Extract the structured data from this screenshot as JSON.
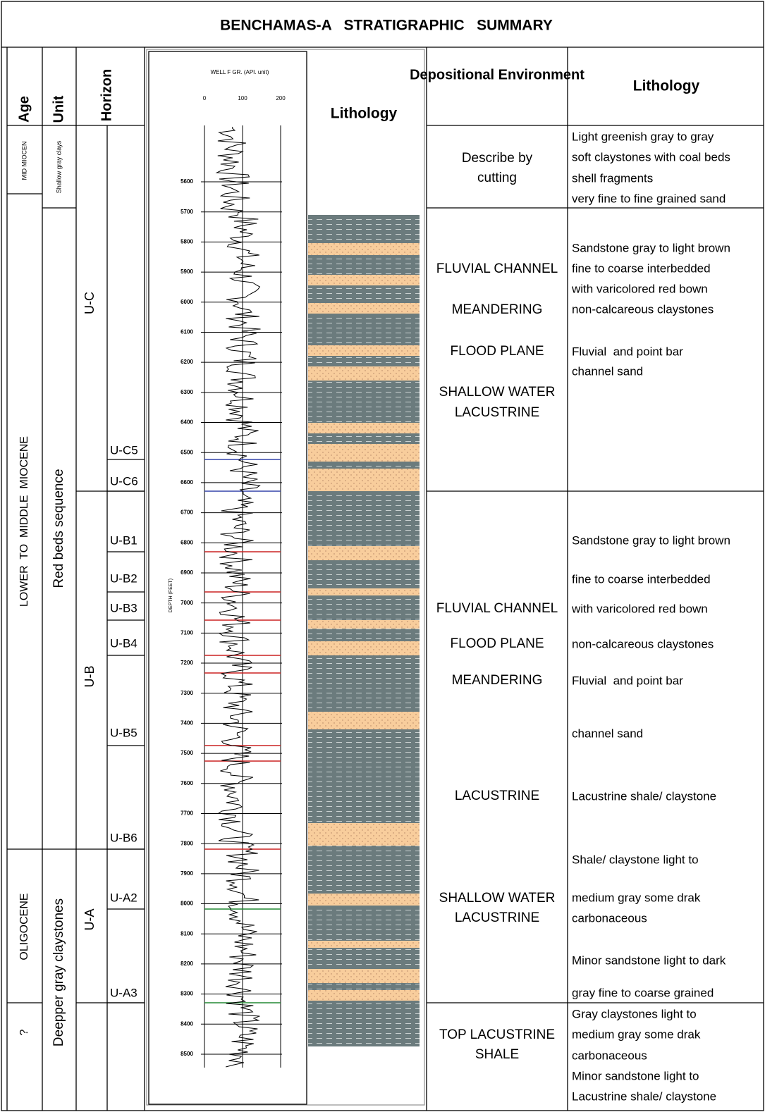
{
  "title": "BENCHAMAS-A   STRATIGRAPHIC   SUMMARY",
  "headers": {
    "age": "Age",
    "unit": "Unit",
    "horizon": "Horizon",
    "log_title": "WELL F GR. (API. unit)",
    "log_ticks": [
      0,
      100,
      200
    ],
    "lithology_column": "Lithology",
    "environment": "Depositional Environment",
    "lithology": "Lithology"
  },
  "depth_label": "DEPTH (FEET)",
  "depth_ticks": [
    5600,
    5700,
    5800,
    5900,
    6000,
    6100,
    6200,
    6300,
    6400,
    6500,
    6600,
    6700,
    6800,
    6900,
    7000,
    7100,
    7200,
    7300,
    7400,
    7500,
    7600,
    7700,
    7800,
    7900,
    8000,
    8100,
    8200,
    8300,
    8400,
    8500
  ],
  "ages": [
    "MID MIOCEN",
    "LOWER  TO  MIDDLE  MIOCENE",
    "OLIGOCENE",
    "?"
  ],
  "units": [
    "Shallow gray clays",
    "Red beds sequence",
    "Deepper gray claystones"
  ],
  "horizons": [
    "U-C",
    "U-B",
    "U-A"
  ],
  "sub_horizons": [
    "U-C5",
    "U-C6",
    "U-B1",
    "U-B2",
    "U-B3",
    "U-B4",
    "U-B5",
    "U-B6",
    "U-A2",
    "U-A3"
  ],
  "environment_lines": [
    "Describe by",
    "cutting",
    "FLUVIAL CHANNEL",
    "MEANDERING",
    "FLOOD PLANE",
    "SHALLOW WATER",
    "LACUSTRINE",
    "FLUVIAL CHANNEL",
    "FLOOD PLANE",
    "MEANDERING",
    "LACUSTRINE",
    "SHALLOW WATER",
    "LACUSTRINE",
    "TOP LACUSTRINE",
    "SHALE"
  ],
  "lithology_lines": [
    "Light greenish gray to gray",
    "soft claystones with coal beds",
    "shell fragments",
    "very fine to fine grained sand",
    "Sandstone gray to light brown",
    "fine to coarse interbedded",
    "with varicolored red bown",
    "non-calcareous claystones",
    "Fluvial  and point bar",
    "channel sand",
    "Sandstone gray to light brown",
    "fine to coarse interbedded",
    "with varicolored red bown",
    "non-calcareous claystones",
    "Fluvial  and point bar",
    "channel sand",
    "Lacustrine shale/ claystone",
    "Shale/ claystone light to",
    "medium gray some drak",
    "carbonaceous",
    "Minor sandstone light to dark",
    "gray fine to coarse grained",
    "Gray claystones light to",
    "medium gray some drak",
    "carbonaceous",
    "Minor sandstone light to",
    "Lacustrine shale/ claystone"
  ]
}
